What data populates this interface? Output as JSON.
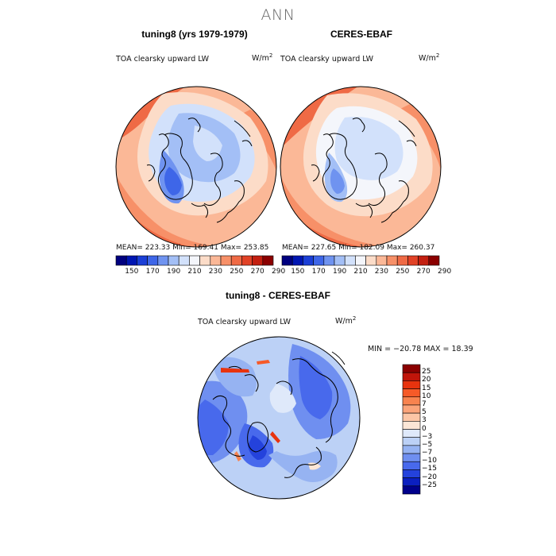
{
  "title": "ANN",
  "panels": [
    {
      "title": "tuning8 (yrs 1979-1979)",
      "variable": "TOA clearsky upward LW",
      "units": "W/m",
      "units_sup": "2",
      "mean": "223.33",
      "min": "169.41",
      "max": "253.85",
      "stats_text": "MEAN= 223.33   Min= 169.41   Max= 253.85"
    },
    {
      "title": "CERES-EBAF",
      "variable": "TOA clearsky upward LW",
      "units": "W/m",
      "units_sup": "2",
      "mean": "227.65",
      "min": "182.09",
      "max": "260.37",
      "stats_text": "MEAN= 227.65   Min= 182.09   Max= 260.37"
    }
  ],
  "diff_panel": {
    "title": "tuning8 - CERES-EBAF",
    "variable": "TOA clearsky upward LW",
    "units": "W/m",
    "units_sup": "2",
    "minmax_text": "MIN = −20.78 MAX =  18.39"
  },
  "colorbar_top": {
    "ticks": [
      "150",
      "170",
      "190",
      "210",
      "230",
      "250",
      "270",
      "290"
    ],
    "colors": [
      "#00007f",
      "#0016b2",
      "#1b3fd6",
      "#3e66e8",
      "#6f93f0",
      "#a3bff6",
      "#d2e1fb",
      "#f4f6fb",
      "#fcdcc8",
      "#fbb897",
      "#f79068",
      "#ef6a45",
      "#e14226",
      "#c31f10",
      "#8b0000"
    ]
  },
  "colorbar_diff": {
    "ticks": [
      "25",
      "20",
      "15",
      "10",
      "7",
      "5",
      "3",
      "0",
      "−3",
      "−5",
      "−7",
      "−10",
      "−15",
      "−20",
      "−25"
    ],
    "colors": [
      "#8b0000",
      "#c0150a",
      "#e8330e",
      "#f65a28",
      "#f8834f",
      "#fba47a",
      "#fcc6a6",
      "#fbe6d6",
      "#dfe9fa",
      "#bcd1f6",
      "#96b3f2",
      "#6f8ff0",
      "#4869ec",
      "#2442dc",
      "#0b1fc0",
      "#00008b"
    ]
  }
}
